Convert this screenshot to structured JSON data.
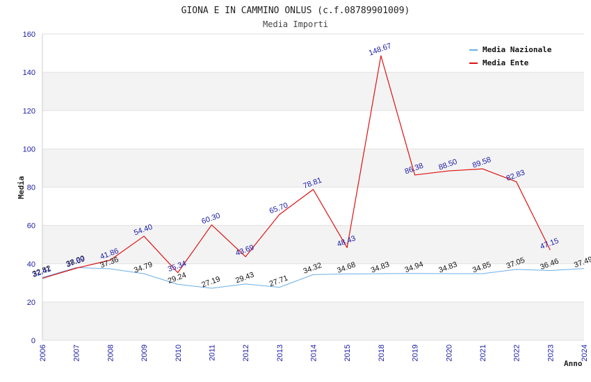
{
  "chart_data": {
    "type": "line",
    "title": "GIONA E IN CAMMINO ONLUS (c.f.08789901009)",
    "subtitle": "Media Importi",
    "xlabel": "Anno",
    "ylabel": "Media",
    "ylim": [
      0,
      160
    ],
    "yticks": [
      "0",
      "20",
      "40",
      "60",
      "80",
      "100",
      "120",
      "140",
      "160"
    ],
    "categories": [
      "2006",
      "2007",
      "2008",
      "2009",
      "2010",
      "2011",
      "2012",
      "2013",
      "2014",
      "2015",
      "2018",
      "2019",
      "2020",
      "2021",
      "2022",
      "2023",
      "2024"
    ],
    "grid": "horizontal, alternating bands",
    "legend": "top-right",
    "series": [
      {
        "name": "Media Nazionale",
        "color": "#6aaee8",
        "values": [
          32.82,
          38.0,
          37.36,
          34.79,
          29.24,
          27.19,
          29.43,
          27.71,
          34.32,
          34.68,
          34.83,
          34.94,
          34.83,
          34.85,
          37.05,
          36.46,
          37.49
        ],
        "labels": [
          "32.82",
          "38.00",
          "37.36",
          "34.79",
          "29.24",
          "27.19",
          "29.43",
          "27.71",
          "34.32",
          "34.68",
          "34.83",
          "34.94",
          "34.83",
          "34.85",
          "37.05",
          "36.46",
          "37.49"
        ]
      },
      {
        "name": "Media Ente",
        "color": "#dd1111",
        "values": [
          32.41,
          37.69,
          41.86,
          54.4,
          35.34,
          60.3,
          43.69,
          65.7,
          78.81,
          48.43,
          148.67,
          86.38,
          88.5,
          89.58,
          82.83,
          47.15,
          null
        ],
        "labels": [
          "32.41",
          "37.69",
          "41.86",
          "54.40",
          "35.34",
          "60.30",
          "43.69",
          "65.70",
          "78.81",
          "48.43",
          "148.67",
          "86.38",
          "88.50",
          "89.58",
          "82.83",
          "47.15",
          ""
        ]
      }
    ]
  }
}
